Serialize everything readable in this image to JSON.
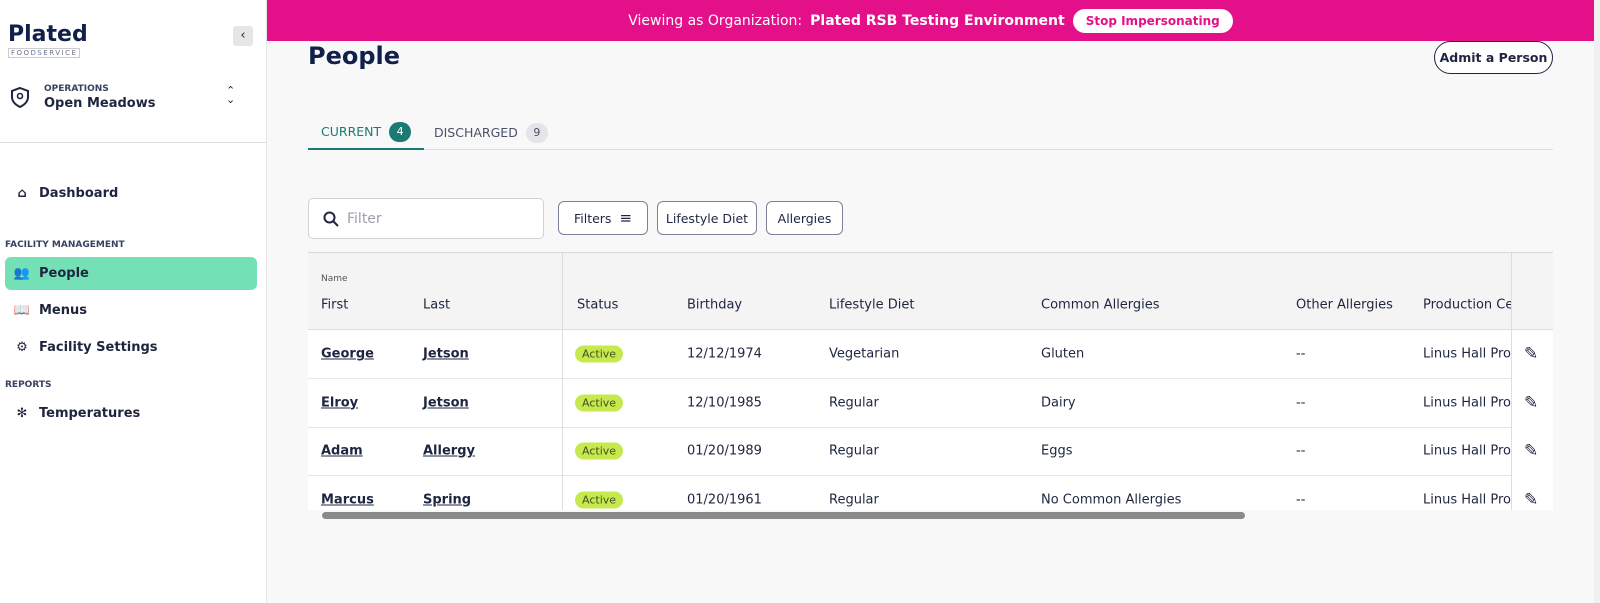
{
  "banner": {
    "prefix": "Viewing as Organization:",
    "org": "Plated RSB Testing Environment",
    "button": "Stop Impersonating"
  },
  "sidebar": {
    "logo": {
      "name": "Plated",
      "sub": "FOODSERVICE"
    },
    "context": {
      "label": "OPERATIONS",
      "name": "Open Meadows"
    },
    "items": [
      "Dashboard"
    ],
    "sections": [
      {
        "heading": "FACILITY MANAGEMENT",
        "items": [
          "People",
          "Menus",
          "Facility Settings"
        ]
      },
      {
        "heading": "REPORTS",
        "items": [
          "Temperatures"
        ]
      }
    ]
  },
  "header": {
    "title": "People",
    "action": "Admit a Person"
  },
  "tabs": [
    {
      "label": "CURRENT",
      "count": 4
    },
    {
      "label": "DISCHARGED",
      "count": 9
    }
  ],
  "toolbar": {
    "filter_placeholder": "Filter",
    "buttons": [
      "Filters",
      "Lifestyle Diet",
      "Allergies"
    ]
  },
  "table": {
    "group_label": "Name",
    "columns": [
      "First",
      "Last",
      "Status",
      "Birthday",
      "Lifestyle Diet",
      "Common Allergies",
      "Other Allergies",
      "Production Cen"
    ],
    "rows": [
      [
        "George",
        "Jetson",
        "Active",
        "12/12/1974",
        "Vegetarian",
        "Gluten",
        "--",
        "Linus Hall Produ"
      ],
      [
        "Elroy",
        "Jetson",
        "Active",
        "12/10/1985",
        "Regular",
        "Dairy",
        "--",
        "Linus Hall Produ"
      ],
      [
        "Adam",
        "Allergy",
        "Active",
        "01/20/1989",
        "Regular",
        "Eggs",
        "--",
        "Linus Hall Produ"
      ],
      [
        "Marcus",
        "Spring",
        "Active",
        "01/20/1961",
        "Regular",
        "No Common Allergies",
        "--",
        "Linus Hall Produ"
      ]
    ]
  }
}
